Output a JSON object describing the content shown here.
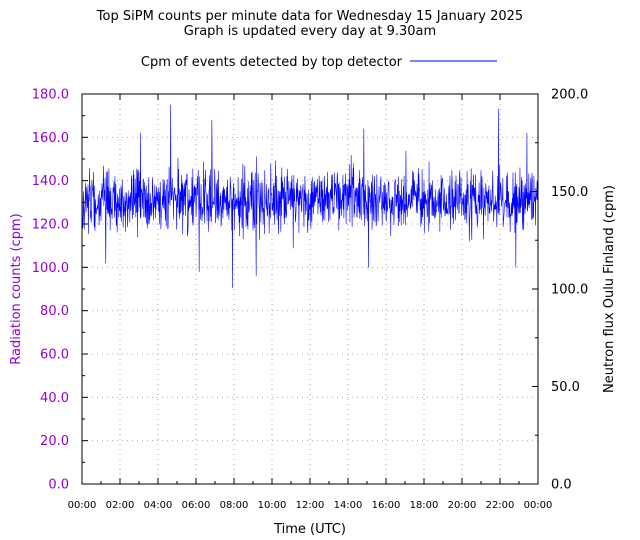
{
  "chart_data": {
    "type": "line",
    "title": "Top SiPM counts per minute data for Wednesday 15 January 2025",
    "subtitle": "Graph is updated every day at 9.30am",
    "legend": {
      "label": "Cpm of events detected by top detector",
      "placement": "top-center"
    },
    "xlabel": "Time (UTC)",
    "ylabel_left": "Radiation counts (cpm)",
    "ylabel_right": "Neutron flux Oulu Finland (cpm)",
    "x_ticks": [
      "00:00",
      "02:00",
      "04:00",
      "06:00",
      "08:00",
      "10:00",
      "12:00",
      "14:00",
      "16:00",
      "18:00",
      "20:00",
      "22:00",
      "00:00"
    ],
    "x_range_hours": [
      0,
      24
    ],
    "y_left_ticks": [
      "0.0",
      "20.0",
      "40.0",
      "60.0",
      "80.0",
      "100.0",
      "120.0",
      "140.0",
      "160.0",
      "180.0"
    ],
    "y_left_range": [
      0,
      180
    ],
    "y_right_ticks": [
      "0.0",
      "50.0",
      "100.0",
      "150.0",
      "200.0"
    ],
    "y_right_range": [
      0,
      200
    ],
    "grid": true,
    "series": [
      {
        "name": "Cpm of events detected by top detector",
        "axis": "left",
        "sampling": "one value per minute",
        "mean": 131,
        "typical_range": [
          118,
          145
        ],
        "min": 90.5,
        "max": 175,
        "notable_peaks": [
          {
            "time": "04:40",
            "value": 175
          },
          {
            "time": "06:50",
            "value": 168
          },
          {
            "time": "21:55",
            "value": 173
          },
          {
            "time": "14:50",
            "value": 164
          },
          {
            "time": "23:25",
            "value": 162
          },
          {
            "time": "03:05",
            "value": 162
          }
        ],
        "notable_dips": [
          {
            "time": "07:55",
            "value": 90.5
          },
          {
            "time": "06:10",
            "value": 98
          },
          {
            "time": "09:10",
            "value": 96
          },
          {
            "time": "15:05",
            "value": 100
          },
          {
            "time": "22:50",
            "value": 100
          },
          {
            "time": "01:15",
            "value": 102
          }
        ]
      }
    ]
  },
  "colors": {
    "series": "#0000ff",
    "left_axis": "#9400d3",
    "right_axis": "#000000",
    "grid": "#aaaaaa"
  }
}
